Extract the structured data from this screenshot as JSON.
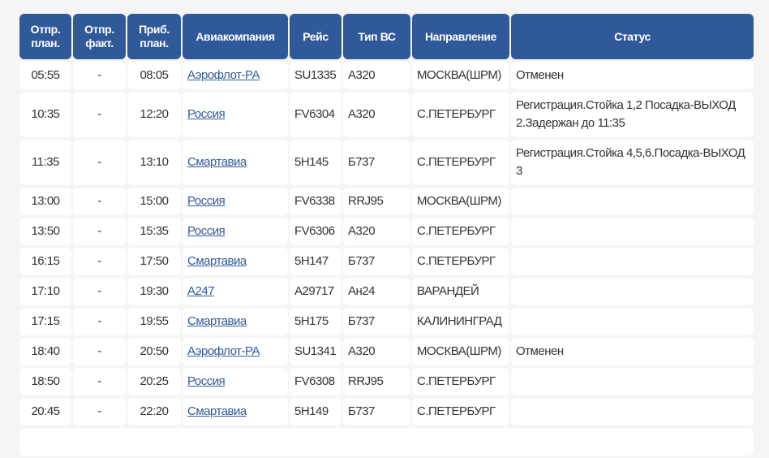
{
  "headers": [
    "Отпр. план.",
    "Отпр. факт.",
    "Приб. план.",
    "Авиакомпания",
    "Рейс",
    "Тип ВС",
    "Направление",
    "Статус"
  ],
  "rows": [
    {
      "dep_plan": "05:55",
      "dep_fact": "-",
      "arr_plan": "08:05",
      "airline": "Аэрофлот-РА",
      "flight": "SU1335",
      "aircraft": "А320",
      "destination": "МОСКВА(ШРМ)",
      "status": "Отменен"
    },
    {
      "dep_plan": "10:35",
      "dep_fact": "-",
      "arr_plan": "12:20",
      "airline": "Россия",
      "flight": "FV6304",
      "aircraft": "А320",
      "destination": "С.ПЕТЕРБУРГ",
      "status": "Регистрация.Стойка 1,2 Посадка-ВЫХОД 2.Задержан до 11:35"
    },
    {
      "dep_plan": "11:35",
      "dep_fact": "-",
      "arr_plan": "13:10",
      "airline": "Смартавиа",
      "flight": "5Н145",
      "aircraft": "Б737",
      "destination": "С.ПЕТЕРБУРГ",
      "status": "Регистрация.Стойка 4,5,6.Посадка-ВЫХОД 3"
    },
    {
      "dep_plan": "13:00",
      "dep_fact": "-",
      "arr_plan": "15:00",
      "airline": "Россия",
      "flight": "FV6338",
      "aircraft": "RRJ95",
      "destination": "МОСКВА(ШРМ)",
      "status": ""
    },
    {
      "dep_plan": "13:50",
      "dep_fact": "-",
      "arr_plan": "15:35",
      "airline": "Россия",
      "flight": "FV6306",
      "aircraft": "А320",
      "destination": "С.ПЕТЕРБУРГ",
      "status": ""
    },
    {
      "dep_plan": "16:15",
      "dep_fact": "-",
      "arr_plan": "17:50",
      "airline": "Смартавиа",
      "flight": "5Н147",
      "aircraft": "Б737",
      "destination": "С.ПЕТЕРБУРГ",
      "status": ""
    },
    {
      "dep_plan": "17:10",
      "dep_fact": "-",
      "arr_plan": "19:30",
      "airline": "А247",
      "flight": "А29717",
      "aircraft": "Ан24",
      "destination": "ВАРАНДЕЙ",
      "status": ""
    },
    {
      "dep_plan": "17:15",
      "dep_fact": "-",
      "arr_plan": "19:55",
      "airline": "Смартавиа",
      "flight": "5Н175",
      "aircraft": "Б737",
      "destination": "КАЛИНИНГРАД",
      "status": ""
    },
    {
      "dep_plan": "18:40",
      "dep_fact": "-",
      "arr_plan": "20:50",
      "airline": "Аэрофлот-РА",
      "flight": "SU1341",
      "aircraft": "А320",
      "destination": "МОСКВА(ШРМ)",
      "status": "Отменен"
    },
    {
      "dep_plan": "18:50",
      "dep_fact": "-",
      "arr_plan": "20:25",
      "airline": "Россия",
      "flight": "FV6308",
      "aircraft": "RRJ95",
      "destination": "С.ПЕТЕРБУРГ",
      "status": ""
    },
    {
      "dep_plan": "20:45",
      "dep_fact": "-",
      "arr_plan": "22:20",
      "airline": "Смартавиа",
      "flight": "5Н149",
      "aircraft": "Б737",
      "destination": "С.ПЕТЕРБУРГ",
      "status": ""
    }
  ],
  "colors": {
    "header_bg": "#30599a",
    "link": "#30599a",
    "page_bg": "#f5f5f5"
  }
}
